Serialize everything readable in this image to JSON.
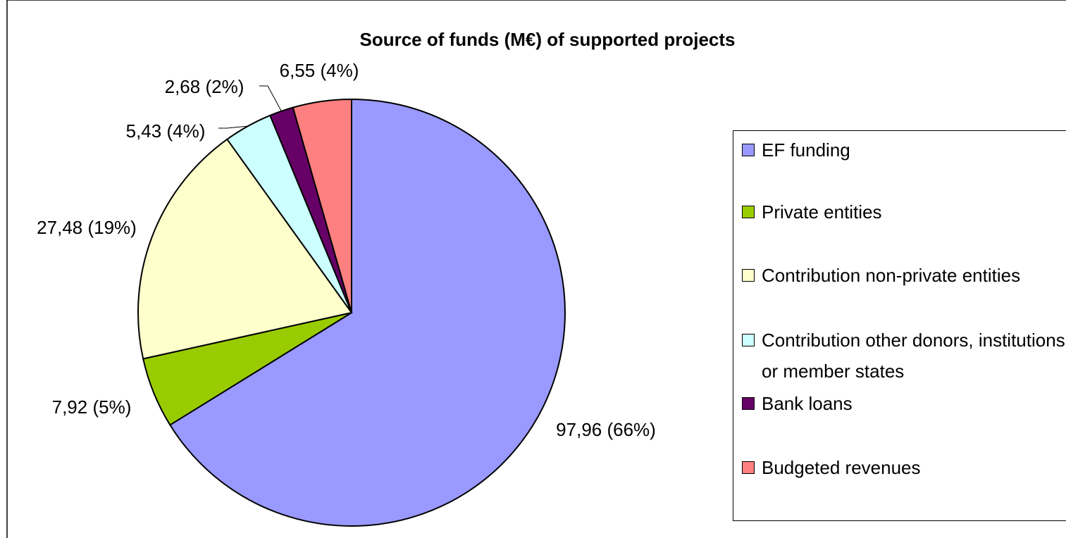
{
  "chart_data": {
    "type": "pie",
    "title": "Source of funds (M€) of supported projects",
    "categories": [
      "EF funding",
      "Private entities",
      "Contribution non-private entities",
      "Contribution other donors, institutions or member states",
      "Bank loans",
      "Budgeted revenues"
    ],
    "values": [
      97.96,
      7.92,
      27.48,
      5.43,
      2.68,
      6.55
    ],
    "value_labels": [
      "97,96 (66%)",
      "7,92 (5%)",
      "27,48 (19%)",
      "5,43 (4%)",
      "2,68 (2%)",
      "6,55 (4%)"
    ],
    "colors": [
      "#9999ff",
      "#99cc00",
      "#ffffcc",
      "#ccffff",
      "#660066",
      "#ff8080"
    ],
    "legend": "right"
  }
}
